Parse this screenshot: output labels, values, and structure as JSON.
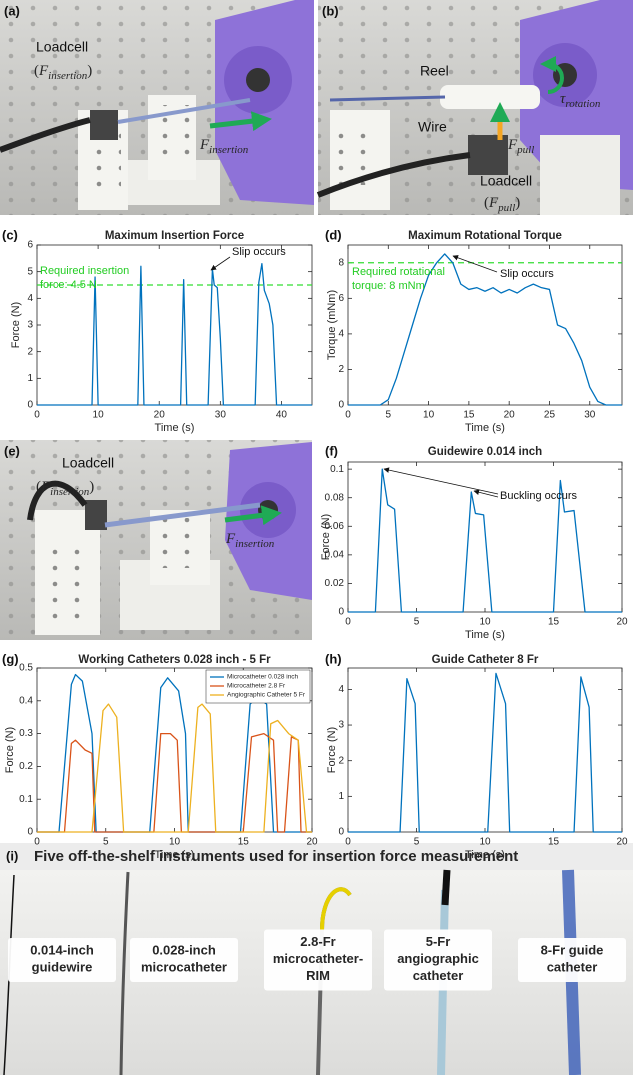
{
  "chart_data": [
    {
      "type": "line",
      "panel": "(c)",
      "title": "Maximum Insertion Force",
      "x_label": "Time (s)",
      "y_label": "Force (N)",
      "xlim": [
        0,
        45
      ],
      "xticks": [
        0,
        10,
        20,
        30,
        40
      ],
      "ylim": [
        0,
        6
      ],
      "yticks": [
        0,
        1,
        2,
        3,
        4,
        5,
        6
      ],
      "reference_line": {
        "value": 4.5,
        "color": "#33dd33"
      },
      "annotations": [
        {
          "text": "Required insertion",
          "color": "#22cc22"
        },
        {
          "text": "force: 4.5 N",
          "color": "#22cc22"
        },
        {
          "text": "Slip occurs",
          "color": "#111111"
        }
      ],
      "series": [
        {
          "name": null,
          "color": "#0072bd",
          "x": [
            0,
            9,
            9.5,
            10,
            16.5,
            17,
            17.5,
            23.5,
            24,
            24.5,
            28,
            28.7,
            29,
            29.5,
            30,
            30.5,
            35.7,
            36.3,
            36.8,
            37.2,
            38,
            38.6,
            39.2,
            45
          ],
          "values": [
            0,
            0,
            4.8,
            0,
            0,
            5.2,
            0,
            0,
            4.7,
            0,
            0,
            5.1,
            4.5,
            4.4,
            2.5,
            0,
            0,
            4.6,
            5.3,
            4.3,
            3.8,
            3.0,
            0,
            0
          ]
        }
      ]
    },
    {
      "type": "line",
      "panel": "(d)",
      "title": "Maximum Rotational Torque",
      "x_label": "Time (s)",
      "y_label": "Torque (mNm)",
      "xlim": [
        0,
        34
      ],
      "xticks": [
        0,
        5,
        10,
        15,
        20,
        25,
        30
      ],
      "ylim": [
        0,
        9
      ],
      "yticks": [
        0,
        2,
        4,
        6,
        8
      ],
      "reference_line": {
        "value": 8,
        "color": "#33dd33"
      },
      "annotations": [
        {
          "text": "Required rotational",
          "color": "#22cc22"
        },
        {
          "text": "torque: 8 mNm",
          "color": "#22cc22"
        },
        {
          "text": "Slip occurs",
          "color": "#111111"
        }
      ],
      "series": [
        {
          "name": null,
          "color": "#0072bd",
          "x": [
            0,
            4,
            5,
            6,
            7,
            8,
            9,
            10,
            11,
            12,
            13,
            14,
            15,
            16,
            17,
            18,
            19,
            20,
            21,
            22,
            23,
            24,
            25,
            26,
            27,
            28,
            29,
            30,
            31,
            32,
            34
          ],
          "values": [
            0,
            0,
            0.3,
            1.5,
            3,
            4.5,
            6,
            7.3,
            8,
            8.5,
            8,
            6.8,
            6.5,
            6.6,
            6.4,
            6.6,
            6.3,
            6.5,
            6.3,
            6.6,
            6.8,
            6.6,
            6.5,
            4.5,
            4.3,
            3.5,
            2.5,
            1,
            0.2,
            0,
            0
          ]
        }
      ]
    },
    {
      "type": "line",
      "panel": "(f)",
      "title": "Guidewire 0.014 inch",
      "x_label": "Time (s)",
      "y_label": "Force (N)",
      "xlim": [
        0,
        20
      ],
      "xticks": [
        0,
        5,
        10,
        15,
        20
      ],
      "ylim": [
        0,
        0.105
      ],
      "yticks": [
        0,
        0.02,
        0.04,
        0.06,
        0.08,
        0.1
      ],
      "annotations": [
        {
          "text": "Buckling occurs",
          "color": "#111111"
        }
      ],
      "series": [
        {
          "name": null,
          "color": "#0072bd",
          "x": [
            0,
            2,
            2.5,
            2.9,
            3.4,
            3.9,
            8.4,
            9,
            9.3,
            9.9,
            10.5,
            15,
            15.5,
            15.8,
            16.5,
            17.3,
            20
          ],
          "values": [
            0,
            0,
            0.1,
            0.075,
            0.072,
            0,
            0,
            0.084,
            0.069,
            0.068,
            0,
            0,
            0.092,
            0.07,
            0.071,
            0,
            0
          ]
        }
      ]
    },
    {
      "type": "line",
      "panel": "(g)",
      "title": "Working Catheters 0.028 inch - 5 Fr",
      "x_label": "Time (s)",
      "y_label": "Force (N)",
      "xlim": [
        0,
        20
      ],
      "xticks": [
        0,
        5,
        10,
        15,
        20
      ],
      "ylim": [
        0,
        0.5
      ],
      "yticks": [
        0,
        0.1,
        0.2,
        0.3,
        0.4,
        0.5
      ],
      "legend": "upper right",
      "series": [
        {
          "name": "Microcatheter 0.028 inch",
          "color": "#0072bd",
          "x": [
            0,
            1.6,
            2.5,
            2.8,
            3.3,
            4,
            4.3,
            8.2,
            9,
            9.5,
            10.3,
            10.8,
            11,
            14.8,
            15.5,
            16,
            16.7,
            17.2,
            20
          ],
          "values": [
            0,
            0,
            0.45,
            0.48,
            0.46,
            0.3,
            0,
            0,
            0.44,
            0.47,
            0.43,
            0.3,
            0,
            0,
            0.39,
            0.41,
            0.39,
            0,
            0
          ]
        },
        {
          "name": "Microcatheter 2.8 Fr",
          "color": "#d95319",
          "x": [
            0,
            2,
            2.5,
            2.8,
            3.5,
            4,
            4.2,
            8.5,
            9,
            9.7,
            10.2,
            10.5,
            15,
            15.6,
            16.5,
            17.2,
            17.5,
            18,
            18.5,
            19,
            19.2,
            20
          ],
          "values": [
            0,
            0,
            0.27,
            0.28,
            0.25,
            0.24,
            0,
            0,
            0.3,
            0.3,
            0.28,
            0,
            0,
            0.29,
            0.3,
            0.28,
            0,
            0,
            0.29,
            0.28,
            0,
            0
          ]
        },
        {
          "name": "Angiographic Catheter 5 Fr",
          "color": "#edb120",
          "x": [
            0,
            4,
            4.8,
            5.2,
            5.8,
            6.3,
            11,
            11.7,
            12,
            12.6,
            13,
            16.5,
            17,
            17.5,
            18.3,
            19,
            19.6,
            20
          ],
          "values": [
            0,
            0,
            0.37,
            0.39,
            0.35,
            0,
            0,
            0.38,
            0.39,
            0.36,
            0,
            0,
            0.33,
            0.34,
            0.3,
            0.28,
            0,
            0
          ]
        }
      ]
    },
    {
      "type": "line",
      "panel": "(h)",
      "title": "Guide Catheter 8 Fr",
      "x_label": "Time (s)",
      "y_label": "Force (N)",
      "xlim": [
        0,
        20
      ],
      "xticks": [
        0,
        5,
        10,
        15,
        20
      ],
      "ylim": [
        0,
        4.6
      ],
      "yticks": [
        0,
        1,
        2,
        3,
        4
      ],
      "series": [
        {
          "name": null,
          "color": "#0072bd",
          "x": [
            0,
            3.8,
            4.3,
            4.9,
            5.2,
            10.2,
            10.8,
            11.5,
            11.8,
            16.5,
            17,
            17.6,
            17.9,
            20
          ],
          "values": [
            0,
            0,
            4.3,
            3.6,
            0,
            0,
            4.45,
            3.6,
            0,
            0,
            4.35,
            3.5,
            0,
            0
          ]
        }
      ]
    }
  ],
  "photos": {
    "a": {
      "panel": "(a)",
      "labels": [
        {
          "text": "Loadcell"
        },
        {
          "pre": "(",
          "base": "F",
          "sub": "insertion",
          "post": ")"
        },
        {
          "base": "F",
          "sub": "insertion"
        }
      ]
    },
    "b": {
      "panel": "(b)",
      "labels": [
        {
          "text": "Reel"
        },
        {
          "text": "Wire"
        },
        {
          "base": "τ",
          "sub": "rotation"
        },
        {
          "base": "F",
          "sub": "pull"
        },
        {
          "text": "Loadcell"
        },
        {
          "pre": "(",
          "base": "F",
          "sub": "pull",
          "post": ")"
        }
      ]
    },
    "e": {
      "panel": "(e)",
      "labels": [
        {
          "text": "Loadcell"
        },
        {
          "pre": "(",
          "base": "F",
          "sub": "insertion",
          "post": ")"
        },
        {
          "base": "F",
          "sub": "insertion"
        }
      ]
    },
    "i": {
      "panel": "(i)",
      "title": "Five off-the-shelf instruments used for insertion force measurement",
      "instruments": [
        [
          "0.014-inch",
          "guidewire"
        ],
        [
          "0.028-inch",
          "microcatheter"
        ],
        [
          "2.8-Fr",
          "microcatheter-",
          "RIM"
        ],
        [
          "5-Fr",
          "angiographic",
          "catheter"
        ],
        [
          "8-Fr guide",
          "catheter"
        ]
      ]
    }
  }
}
